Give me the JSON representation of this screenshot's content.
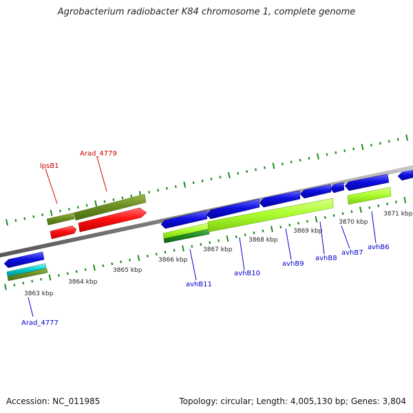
{
  "title": "Agrobacterium radiobacter K84 chromosome 1, complete genome",
  "footer": {
    "accession": "Accession: NC_011985",
    "summary": "Topology: circular; Length: 4,005,130 bp; Genes: 3,804"
  },
  "scale_labels": [
    "3863 kbp",
    "3864 kbp",
    "3865 kbp",
    "3866 kbp",
    "3867 kbp",
    "3868 kbp",
    "3869 kbp",
    "3870 kbp",
    "3871 kbp"
  ],
  "gene_labels": [
    {
      "id": "lpsB1",
      "text": "lpsB1",
      "color": "#cc0000"
    },
    {
      "id": "arad4779",
      "text": "Arad_4779",
      "color": "#cc0000"
    },
    {
      "id": "arad4777",
      "text": "Arad_4777",
      "color": "#0000cc"
    },
    {
      "id": "avhB11",
      "text": "avhB11",
      "color": "#0000cc"
    },
    {
      "id": "avhB10",
      "text": "avhB10",
      "color": "#0000cc"
    },
    {
      "id": "avhB9",
      "text": "avhB9",
      "color": "#0000cc"
    },
    {
      "id": "avhB8",
      "text": "avhB8",
      "color": "#0000cc"
    },
    {
      "id": "avhB7",
      "text": "avhB7",
      "color": "#0000cc"
    },
    {
      "id": "avhB6",
      "text": "avhB6",
      "color": "#0000cc"
    }
  ],
  "colors": {
    "backbone": "#888888",
    "tick": "#1a8a1a",
    "cds_blue": "#1010e0",
    "cds_red": "#ff1010",
    "olive": "#6b8e23",
    "light_green": "#adff2f",
    "dark_green": "#228b22",
    "cyan": "#00cccc"
  }
}
